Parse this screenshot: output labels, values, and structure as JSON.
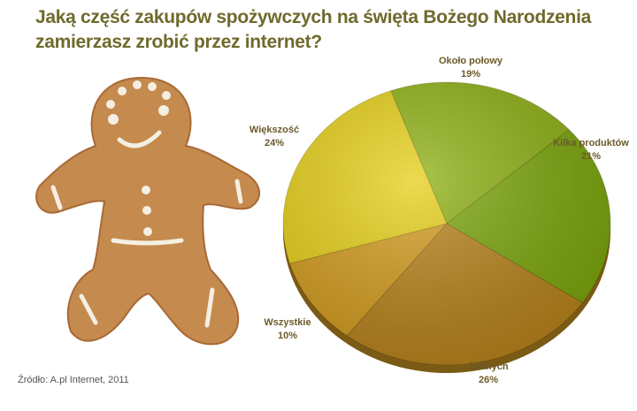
{
  "chart_data": {
    "type": "pie",
    "title": "Jaką część zakupów spożywczych na święta Bożego Narodzenia zamierzasz zrobić przez internet?",
    "categories": [
      "Około połowy",
      "Kilka produktów",
      "Żadnych",
      "Wszystkie",
      "Większość"
    ],
    "values": [
      19,
      21,
      26,
      10,
      24
    ],
    "value_labels": [
      "19%",
      "21%",
      "26%",
      "10%",
      "24%"
    ],
    "colors": [
      "#8eb012",
      "#7ca70c",
      "#b9841c",
      "#d49c1e",
      "#e6cf16"
    ],
    "source": "Źródło: A.pl Internet, 2011"
  }
}
